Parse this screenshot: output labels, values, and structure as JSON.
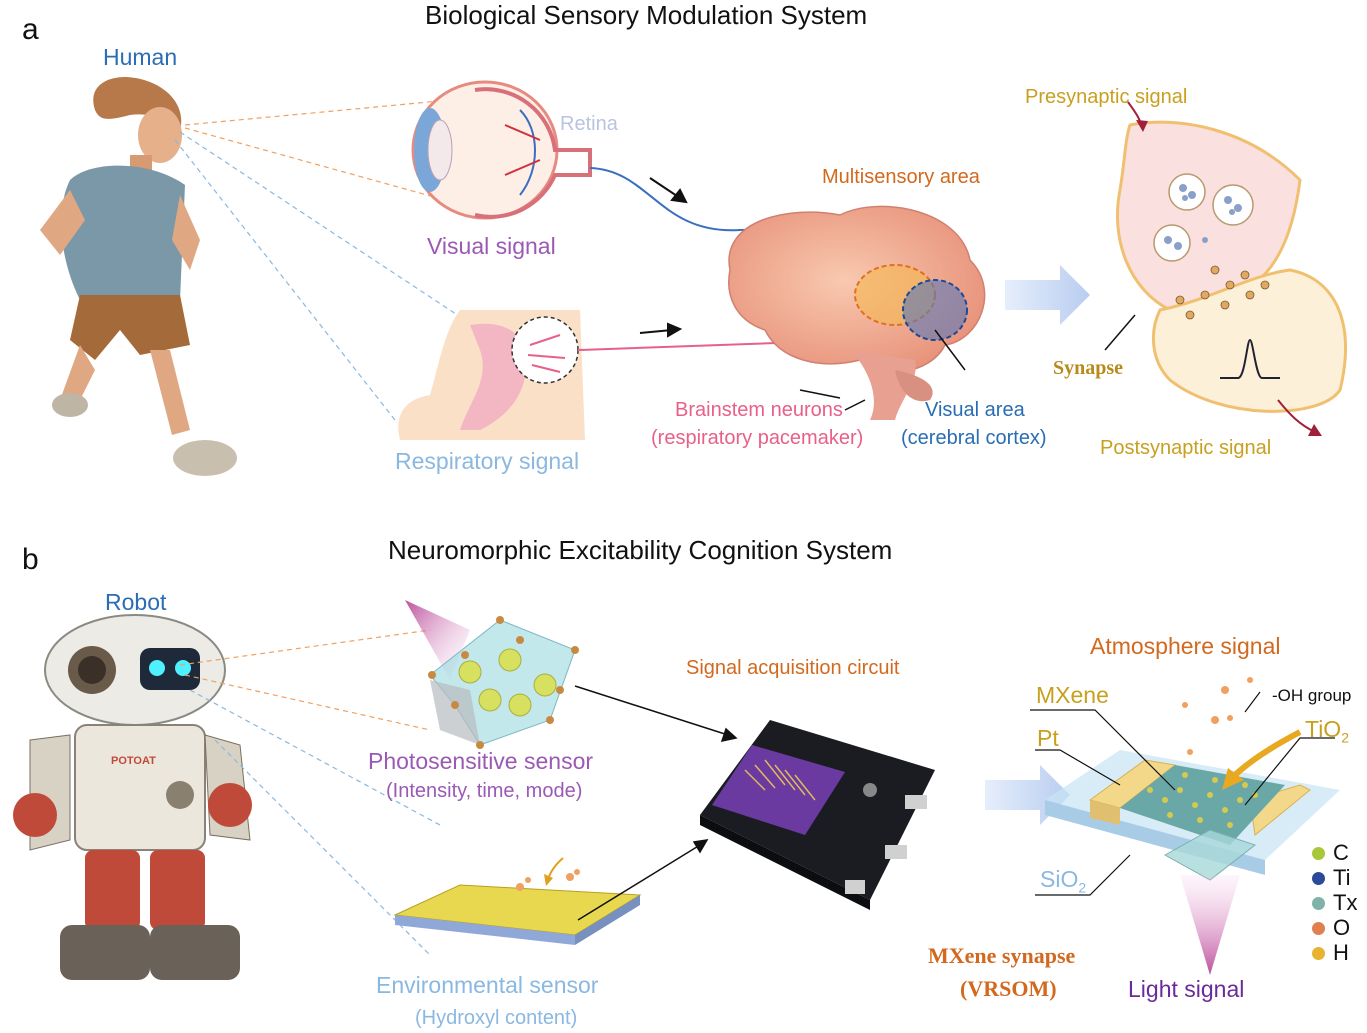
{
  "panel_a": {
    "letter": "a",
    "title": "Biological Sensory Modulation System",
    "human_label": "Human",
    "retina_label": "Retina",
    "visual_signal": "Visual signal",
    "respiratory_signal": "Respiratory signal",
    "multisensory_area": "Multisensory area",
    "brainstem_line1": "Brainstem neurons",
    "brainstem_line2": "(respiratory pacemaker)",
    "visual_area_line1": "Visual area",
    "visual_area_line2": "(cerebral cortex)",
    "presynaptic": "Presynaptic signal",
    "synapse": "Synapse",
    "postsynaptic": "Postsynaptic signal"
  },
  "panel_b": {
    "letter": "b",
    "title": "Neuromorphic Excitability Cognition System",
    "robot_label": "Robot",
    "robot_chest": "POTOAT",
    "photo_sensor": "Photosensitive sensor",
    "photo_sub": "(Intensity, time, mode)",
    "env_sensor": "Environmental sensor",
    "env_sub": "(Hydroxyl content)",
    "circuit": "Signal acquisition circuit",
    "atmosphere": "Atmosphere signal",
    "mxene": "MXene",
    "pt": "Pt",
    "oh_group": "-OH group",
    "tio2": "TiO",
    "tio2_sub": "2",
    "sio2": "SiO",
    "sio2_sub": "2",
    "synapse_line1": "MXene synapse",
    "synapse_line2": "(VRSOM)",
    "light_signal": "Light signal",
    "legend": [
      {
        "label": "C",
        "color": "#a8c83a"
      },
      {
        "label": "Ti",
        "color": "#2c4a9a"
      },
      {
        "label": "Tx",
        "color": "#7fb3a8"
      },
      {
        "label": "O",
        "color": "#e08050"
      },
      {
        "label": "H",
        "color": "#e8b430"
      }
    ]
  },
  "colors": {
    "blue_label": "#2a6db5",
    "purple_label": "#9b59b6",
    "light_blue_label": "#8ab8e0",
    "orange_label": "#d2691e",
    "pink_label": "#e8608a",
    "gold_label": "#c8a020",
    "dark_gold": "#b88a1a"
  }
}
